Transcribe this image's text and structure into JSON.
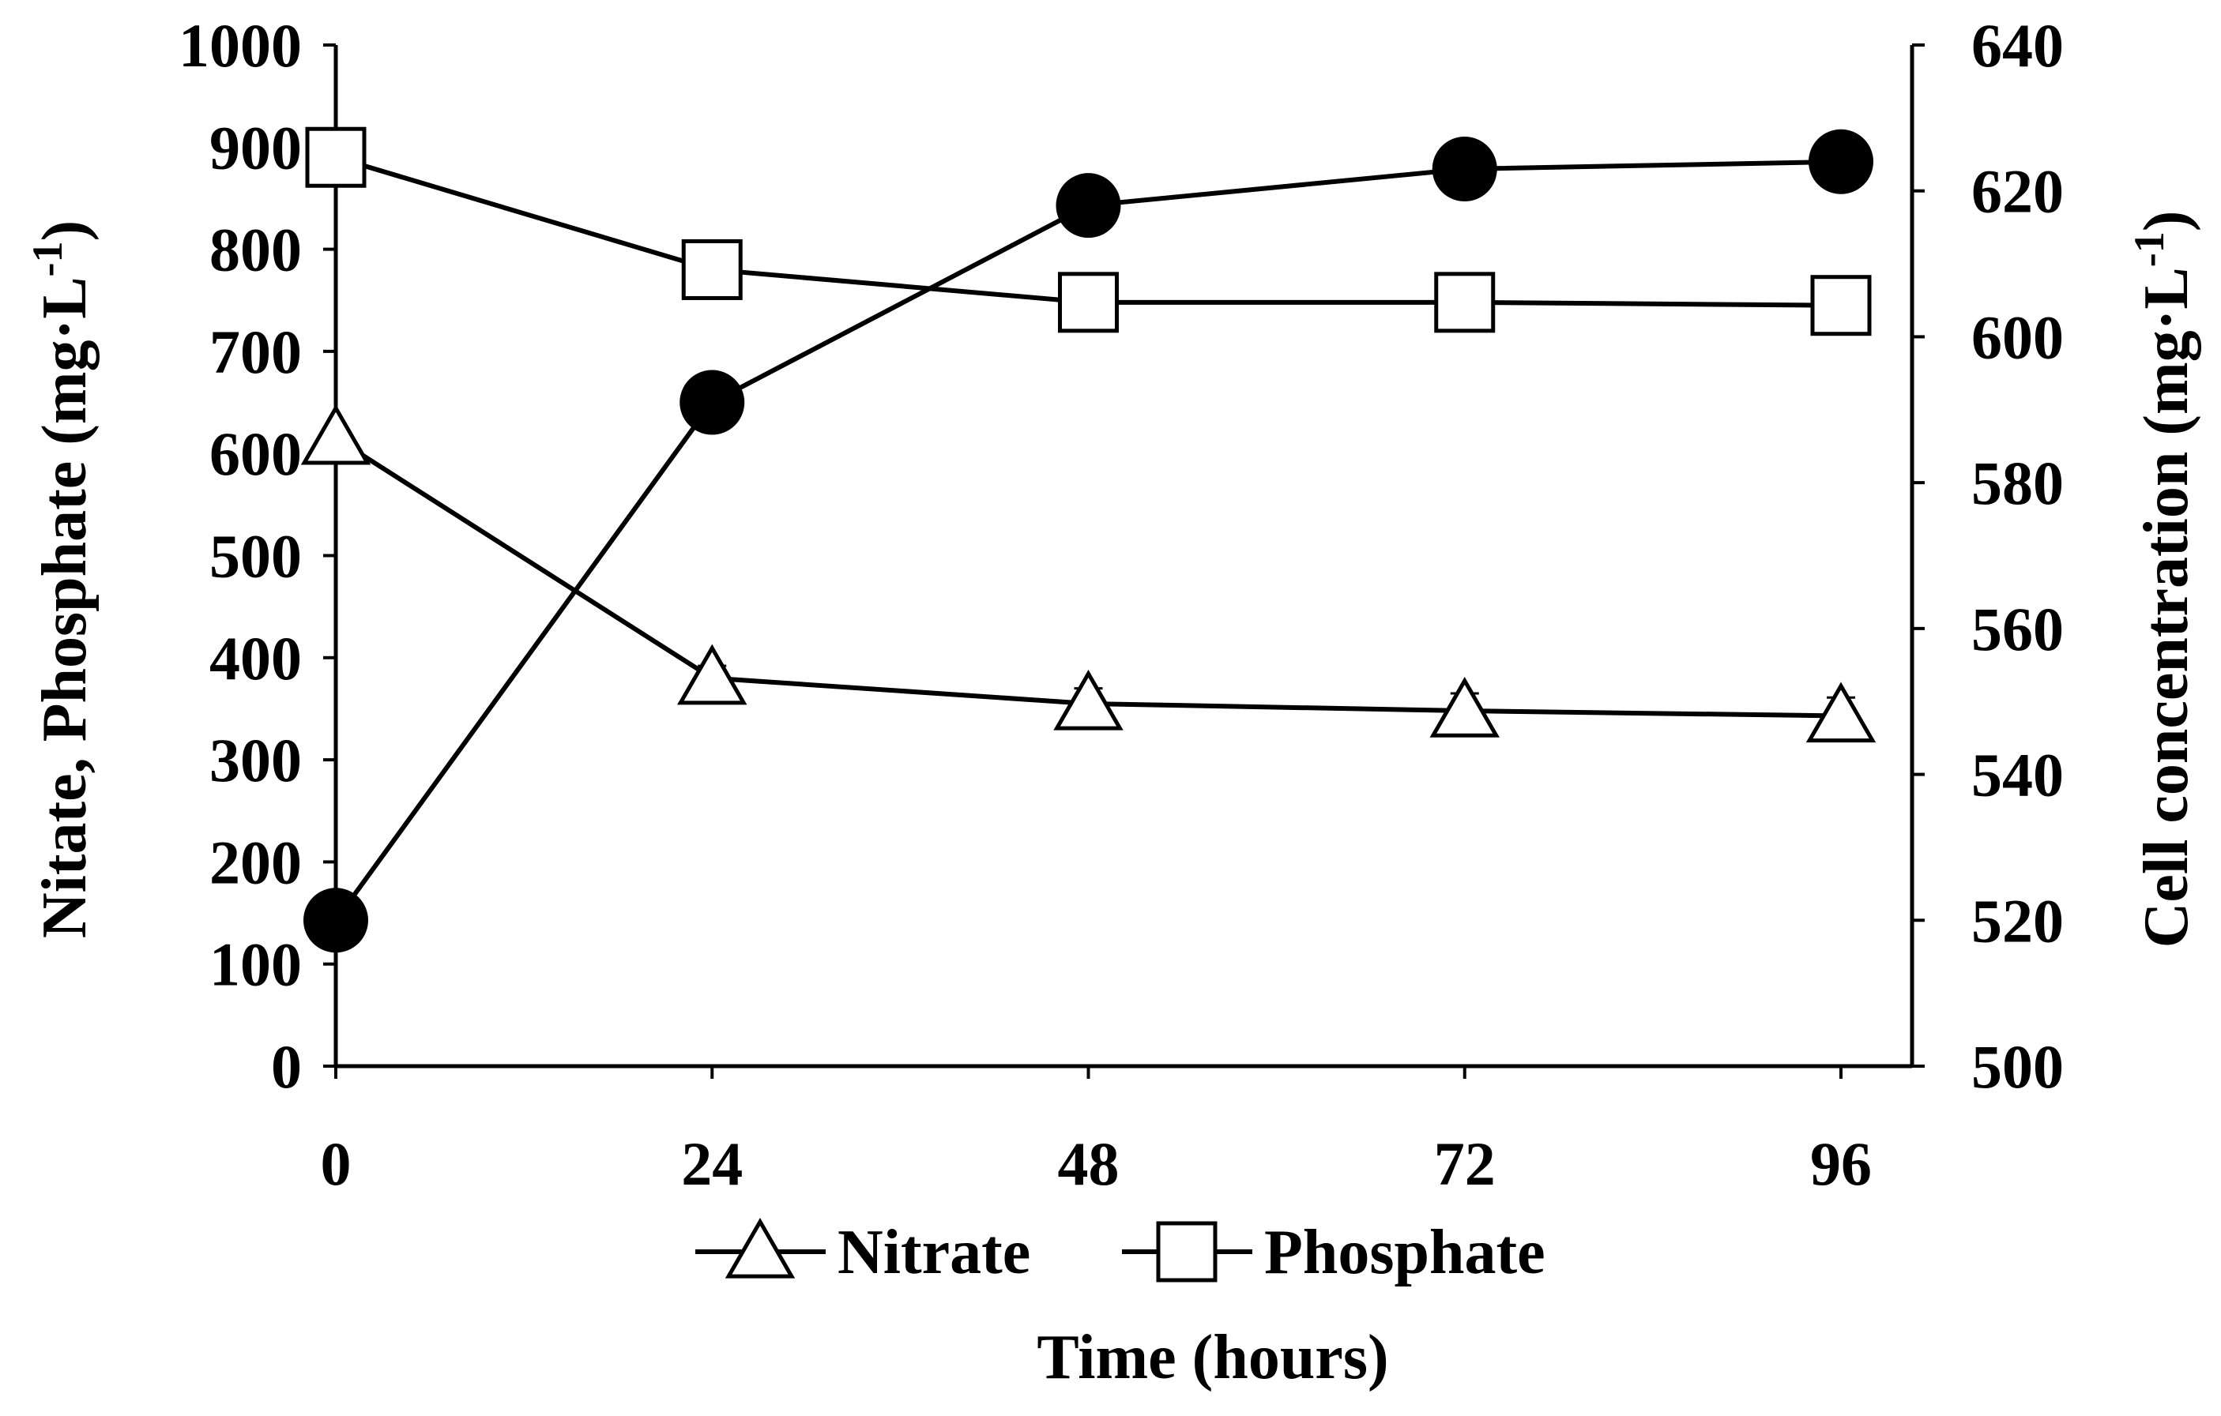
{
  "chart_data": {
    "type": "line",
    "title": "",
    "xlabel": "Time (hours)",
    "ylabel": "Nitate, Phosphate (mg·L",
    "ylabel_sup": "-1",
    "ylabel_close": ")",
    "y2label": "Cell concentration (mg·L",
    "y2label_sup": "-1",
    "y2label_close": ")",
    "x": [
      0,
      24,
      48,
      72,
      96
    ],
    "x_ticks": [
      "0",
      "24",
      "48",
      "72",
      "96"
    ],
    "xlim": [
      0,
      96
    ],
    "ylim": [
      0,
      1000
    ],
    "y_ticks": [
      "0",
      "100",
      "200",
      "300",
      "400",
      "500",
      "600",
      "700",
      "800",
      "900",
      "1000"
    ],
    "y2lim": [
      500,
      640
    ],
    "y2_ticks": [
      "500",
      "520",
      "540",
      "560",
      "580",
      "600",
      "620",
      "640"
    ],
    "grid": false,
    "legend_position": "bottom",
    "series": [
      {
        "name": "Nitrate",
        "axis": "left",
        "marker": "open-triangle",
        "values": [
          615,
          380,
          355,
          348,
          343
        ],
        "errors": [
          0,
          12,
          15,
          17,
          18
        ],
        "in_legend": true
      },
      {
        "name": "Phosphate",
        "axis": "left",
        "marker": "open-square",
        "values": [
          890,
          780,
          748,
          748,
          745
        ],
        "errors": [
          0,
          0,
          0,
          0,
          17
        ],
        "in_legend": true
      },
      {
        "name": "Cell concentration",
        "axis": "right",
        "marker": "filled-circle",
        "values": [
          520,
          591,
          618,
          623,
          624
        ],
        "errors": [
          0,
          1.8,
          0,
          1.8,
          0.9
        ],
        "in_legend": false
      }
    ]
  }
}
